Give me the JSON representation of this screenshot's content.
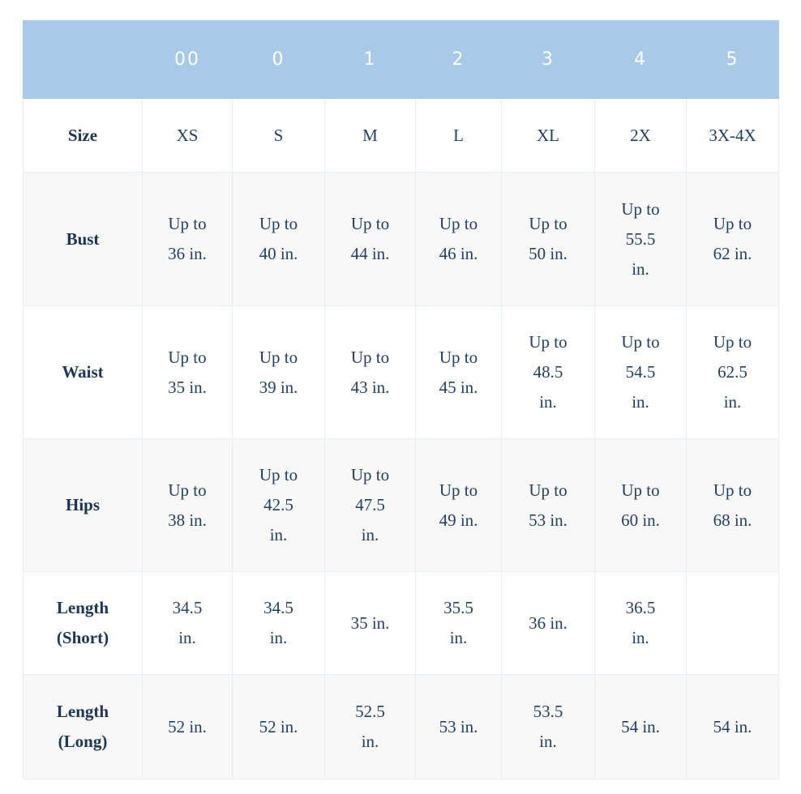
{
  "header": {
    "corner": "",
    "columns": [
      "00",
      "0",
      "1",
      "2",
      "3",
      "4",
      "5"
    ]
  },
  "colors": {
    "header_bg": "#a9c9e8",
    "header_text": "#ffffff",
    "body_text": "#243f66",
    "alt_row": "#f8f8f8"
  },
  "rows": [
    {
      "label": "Size",
      "cells": [
        "XS",
        "S",
        "M",
        "L",
        "XL",
        "2X",
        "3X-4X"
      ]
    },
    {
      "label": "Bust",
      "cells": [
        "Up to\n36 in.",
        "Up to\n40 in.",
        "Up to\n44 in.",
        "Up to\n46 in.",
        "Up to\n50 in.",
        "Up to\n55.5\nin.",
        "Up to\n62 in."
      ]
    },
    {
      "label": "Waist",
      "cells": [
        "Up to\n35 in.",
        "Up to\n39 in.",
        "Up to\n43 in.",
        "Up to\n45 in.",
        "Up to\n48.5\nin.",
        "Up to\n54.5\nin.",
        "Up to\n62.5\nin."
      ]
    },
    {
      "label": "Hips",
      "cells": [
        "Up to\n38 in.",
        "Up to\n42.5\nin.",
        "Up to\n47.5\nin.",
        "Up to\n49 in.",
        "Up to\n53 in.",
        "Up to\n60 in.",
        "Up to\n68 in."
      ]
    },
    {
      "label": "Length\n(Short)",
      "cells": [
        "34.5\nin.",
        "34.5\nin.",
        "35 in.",
        "35.5\nin.",
        "36 in.",
        "36.5\nin.",
        ""
      ]
    },
    {
      "label": "Length\n(Long)",
      "cells": [
        "52 in.",
        "52 in.",
        "52.5\nin.",
        "53 in.",
        "53.5\nin.",
        "54 in.",
        "54 in."
      ]
    }
  ]
}
